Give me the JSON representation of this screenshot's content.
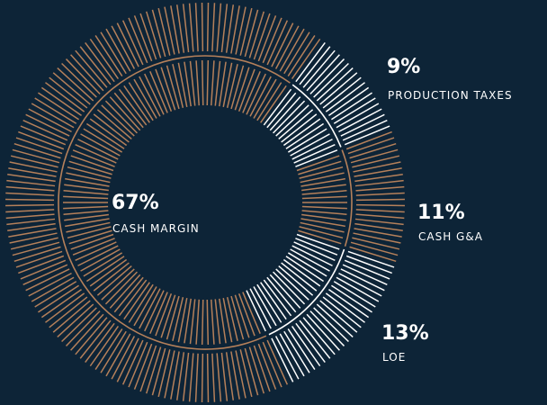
{
  "chart_data": {
    "type": "pie",
    "style": "radial-tick-donut",
    "slices": [
      {
        "label": "PRODUCTION TAXES",
        "pct_text": "9%",
        "value": 9,
        "color": "#ffffff"
      },
      {
        "label": "CASH G&A",
        "pct_text": "11%",
        "value": 11,
        "color": "#b5805a"
      },
      {
        "label": "LOE",
        "pct_text": "13%",
        "value": 13,
        "color": "#ffffff"
      },
      {
        "label": "CASH MARGIN",
        "pct_text": "67%",
        "value": 67,
        "color": "#b5805a"
      }
    ],
    "background_color": "#0d2437"
  }
}
